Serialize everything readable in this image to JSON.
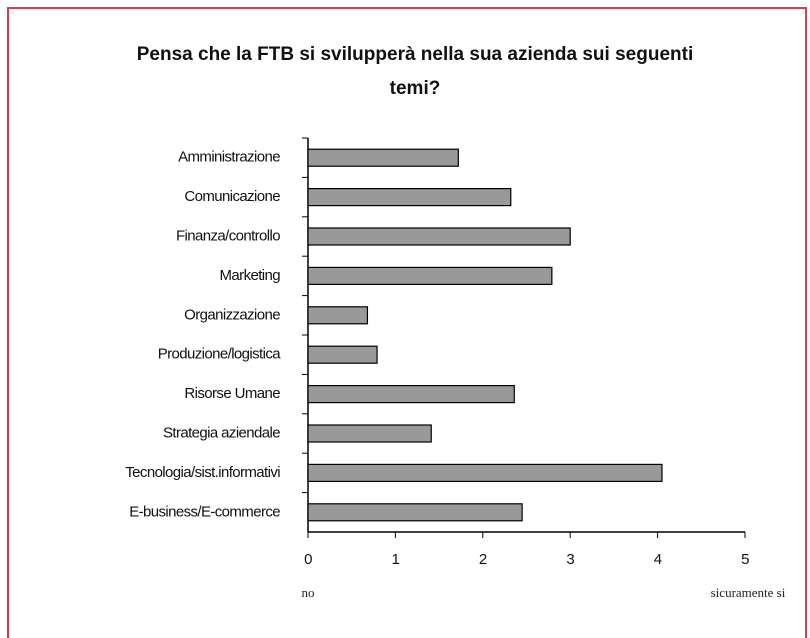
{
  "chart_data": {
    "type": "bar",
    "orientation": "horizontal",
    "title": "Pensa che la FTB si svilupperà nella sua azienda sui seguenti temi?",
    "categories": [
      "Amministrazione",
      "Comunicazione",
      "Finanza/controllo",
      "Marketing",
      "Organizzazione",
      "Produzione/logistica",
      "Risorse Umane",
      "Strategia aziendale",
      "Tecnologia/sist.informativi",
      "E-business/E-commerce"
    ],
    "values": [
      1.72,
      2.32,
      3.0,
      2.79,
      0.68,
      0.79,
      2.36,
      1.41,
      4.05,
      2.45
    ],
    "color": "#999999",
    "xlim": [
      0,
      5
    ],
    "xticks": [
      0,
      1,
      2,
      3,
      4,
      5
    ],
    "annotations": [
      "no",
      "sicuramente si"
    ]
  }
}
